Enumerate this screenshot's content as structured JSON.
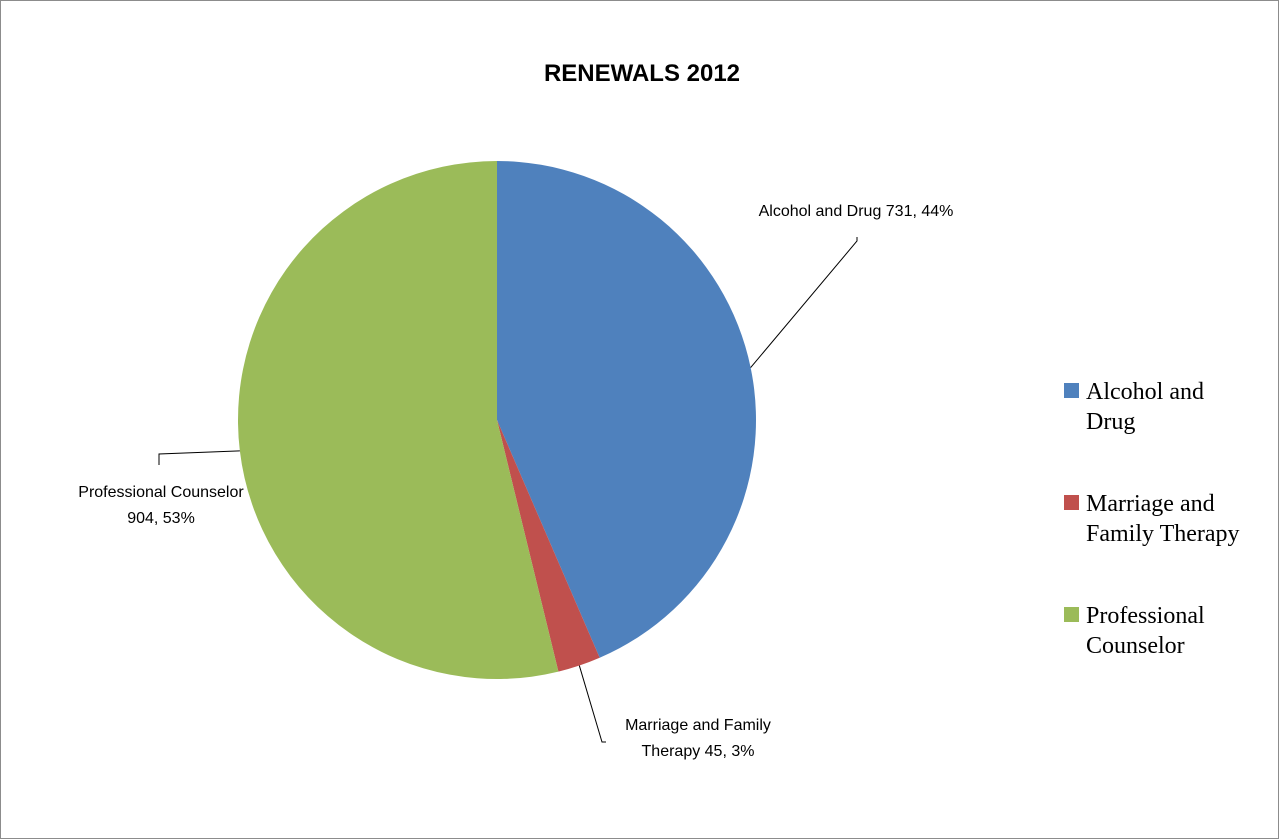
{
  "chart_data": {
    "type": "pie",
    "title": "RENEWALS 2012",
    "slices": [
      {
        "name": "Alcohol and Drug",
        "value": 731,
        "percent_label": "44%",
        "color": "#4f81bd",
        "label_lines": [
          "Alcohol and Drug 731, 44%"
        ],
        "legend_lines": [
          "Alcohol and",
          "Drug"
        ]
      },
      {
        "name": "Marriage and Family Therapy",
        "value": 45,
        "percent_label": "3%",
        "color": "#c0504d",
        "label_lines": [
          "Marriage and Family",
          "Therapy 45, 3%"
        ],
        "legend_lines": [
          "Marriage and",
          "Family Therapy"
        ]
      },
      {
        "name": "Professional Counselor",
        "value": 904,
        "percent_label": "53%",
        "color": "#9bbb59",
        "label_lines": [
          "Professional Counselor",
          "904, 53%"
        ],
        "legend_lines": [
          "Professional",
          "Counselor"
        ]
      }
    ],
    "legend_position": "right"
  }
}
